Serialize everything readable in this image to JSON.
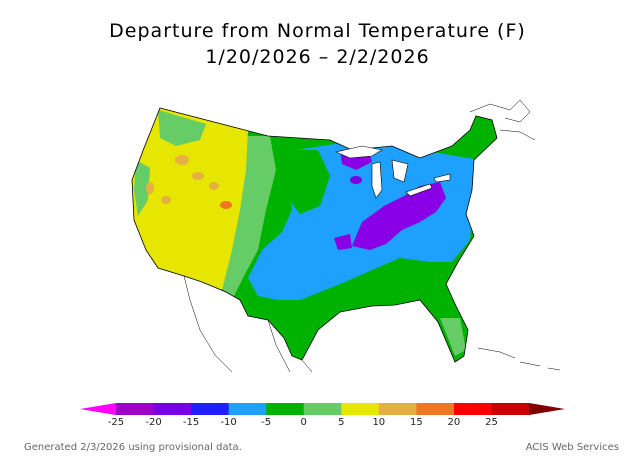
{
  "title": "Departure from Normal Temperature (F)",
  "date_range": "1/20/2026 – 2/2/2026",
  "footer": {
    "generated": "Generated 2/3/2026 using provisional data.",
    "credit": "ACIS Web Services"
  },
  "legend": {
    "ticks": [
      "-25",
      "-20",
      "-15",
      "-10",
      "-5",
      "0",
      "5",
      "10",
      "15",
      "20",
      "25"
    ],
    "colors": [
      "#ff00ff",
      "#a000c8",
      "#7a00e0",
      "#2020ff",
      "#1ea0ff",
      "#00b200",
      "#66cc66",
      "#e6e600",
      "#e6b040",
      "#f07820",
      "#ff0000",
      "#c80000",
      "#800000"
    ]
  },
  "map": {
    "region": "Contiguous United States",
    "colors": {
      "very_cold": "#8a00e6",
      "cold": "#1ea0ff",
      "cool": "#00b200",
      "slightly_cool": "#66cc66",
      "slightly_warm": "#e6e600",
      "warm": "#e6b040",
      "boundary": "#000000"
    }
  }
}
